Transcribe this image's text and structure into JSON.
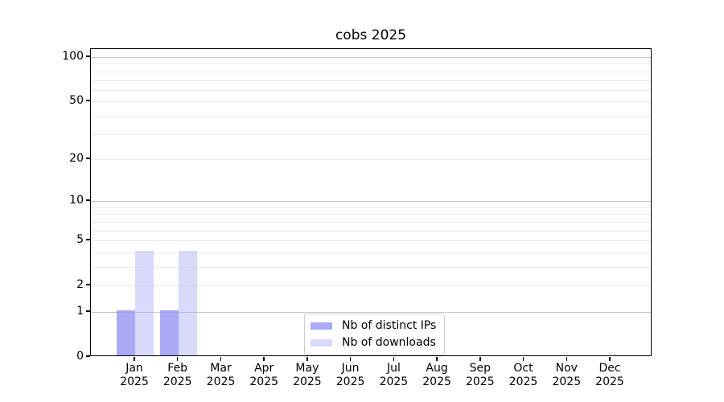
{
  "chart_data": {
    "type": "bar",
    "title": "cobs 2025",
    "categories": [
      "Jan 2025",
      "Feb 2025",
      "Mar 2025",
      "Apr 2025",
      "May 2025",
      "Jun 2025",
      "Jul 2025",
      "Aug 2025",
      "Sep 2025",
      "Oct 2025",
      "Nov 2025",
      "Dec 2025"
    ],
    "x_tick_months": [
      "Jan",
      "Feb",
      "Mar",
      "Apr",
      "May",
      "Jun",
      "Jul",
      "Aug",
      "Sep",
      "Oct",
      "Nov",
      "Dec"
    ],
    "x_tick_year": "2025",
    "series": [
      {
        "name": "Nb of distinct IPs",
        "color": "#a9a9f6",
        "color_rgba": "rgba(150,150,242,0.82)",
        "values": [
          1,
          1,
          0,
          0,
          0,
          0,
          0,
          0,
          0,
          0,
          0,
          0
        ]
      },
      {
        "name": "Nb of downloads",
        "color": "#dadaf8",
        "color_rgba": "rgba(170,170,242,0.45)",
        "values": [
          4,
          4,
          0,
          0,
          0,
          0,
          0,
          0,
          0,
          0,
          0,
          0
        ]
      }
    ],
    "y_ticks": [
      0,
      1,
      2,
      5,
      10,
      20,
      50,
      100
    ],
    "y_scale": "log1p",
    "ylim": [
      0,
      113
    ],
    "grid": {
      "major_values": [
        1,
        10,
        100
      ],
      "minor_values": [
        2,
        3,
        4,
        5,
        6,
        7,
        8,
        9,
        20,
        30,
        40,
        50,
        60,
        70,
        80,
        90
      ],
      "major_color": "#c6c6c6",
      "minor_color": "#ebebeb"
    },
    "legend_position": "lower center"
  }
}
